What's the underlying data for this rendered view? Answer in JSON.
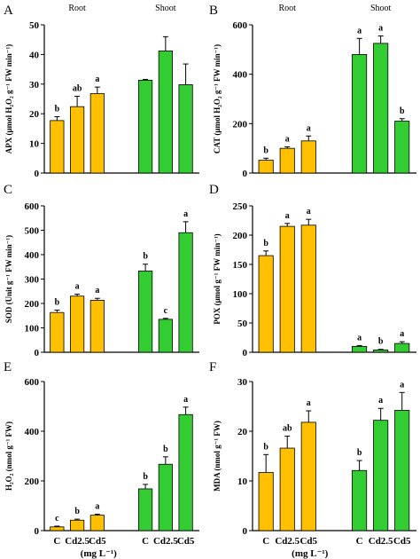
{
  "figure": {
    "colors": {
      "root": "#FFC000",
      "shoot": "#33CC33",
      "axis": "#000000"
    },
    "x_unit": "(mg L⁻¹)"
  },
  "chart_data": [
    {
      "panel": "A",
      "type": "bar",
      "ylabel": "APX (μmol H₂O₂ g⁻¹ FW min⁻¹)",
      "ylim": [
        0,
        50
      ],
      "yticks": [
        0,
        10,
        20,
        30,
        40,
        50
      ],
      "group_labels": [
        "Root",
        "Shoot"
      ],
      "categories": [
        "C",
        "Cd2.5",
        "Cd5"
      ],
      "series": [
        {
          "name": "Root",
          "values": [
            17.7,
            22.4,
            26.8
          ],
          "errors": [
            1.3,
            3.5,
            2.2
          ],
          "letters": [
            "b",
            "ab",
            "a"
          ]
        },
        {
          "name": "Shoot",
          "values": [
            31.3,
            41.2,
            29.8
          ],
          "errors": [
            0.3,
            4.8,
            7.0
          ],
          "letters": [
            "",
            "",
            ""
          ]
        }
      ]
    },
    {
      "panel": "B",
      "type": "bar",
      "ylabel": "CAT (μmol H₂O₂ g⁻¹ FW min⁻¹)",
      "ylim": [
        0,
        600
      ],
      "yticks": [
        0,
        200,
        400,
        600
      ],
      "group_labels": [
        "Root",
        "Shoot"
      ],
      "categories": [
        "C",
        "Cd2.5",
        "Cd5"
      ],
      "series": [
        {
          "name": "Root",
          "values": [
            52,
            100,
            130
          ],
          "errors": [
            8,
            6,
            20
          ],
          "letters": [
            "b",
            "a",
            "a"
          ]
        },
        {
          "name": "Shoot",
          "values": [
            480,
            525,
            210
          ],
          "errors": [
            65,
            30,
            10
          ],
          "letters": [
            "a",
            "a",
            "b"
          ]
        }
      ]
    },
    {
      "panel": "C",
      "type": "bar",
      "ylabel": "SOD (Unit g⁻¹ FW min⁻¹)",
      "ylim": [
        0,
        600
      ],
      "yticks": [
        0,
        100,
        200,
        300,
        400,
        500,
        600
      ],
      "group_labels": [],
      "categories": [
        "C",
        "Cd2.5",
        "Cd5"
      ],
      "series": [
        {
          "name": "Root",
          "values": [
            163,
            230,
            213
          ],
          "errors": [
            10,
            8,
            8
          ],
          "letters": [
            "b",
            "a",
            "a"
          ]
        },
        {
          "name": "Shoot",
          "values": [
            333,
            135,
            490
          ],
          "errors": [
            28,
            4,
            45
          ],
          "letters": [
            "b",
            "c",
            "a"
          ]
        }
      ]
    },
    {
      "panel": "D",
      "type": "bar",
      "ylabel": "POX (μmol g⁻¹ FW min⁻¹)",
      "ylim": [
        0,
        250
      ],
      "yticks": [
        0,
        50,
        100,
        150,
        200,
        250
      ],
      "group_labels": [],
      "categories": [
        "C",
        "Cd2.5",
        "Cd5"
      ],
      "series": [
        {
          "name": "Root",
          "values": [
            165,
            215,
            217
          ],
          "errors": [
            8,
            5,
            10
          ],
          "letters": [
            "b",
            "a",
            "a"
          ]
        },
        {
          "name": "Shoot",
          "values": [
            10,
            4,
            15
          ],
          "errors": [
            1.5,
            1,
            3
          ],
          "letters": [
            "a",
            "b",
            "a"
          ]
        }
      ]
    },
    {
      "panel": "E",
      "type": "bar",
      "ylabel": "H₂O₂ (nmol g⁻¹ FW)",
      "ylim": [
        0,
        600
      ],
      "yticks": [
        0,
        200,
        400,
        600
      ],
      "group_labels": [],
      "categories": [
        "C",
        "Cd2.5",
        "Cd5"
      ],
      "series": [
        {
          "name": "Root",
          "values": [
            15,
            42,
            62
          ],
          "errors": [
            3,
            4,
            4
          ],
          "letters": [
            "c",
            "b",
            "a"
          ]
        },
        {
          "name": "Shoot",
          "values": [
            168,
            267,
            467
          ],
          "errors": [
            18,
            30,
            30
          ],
          "letters": [
            "b",
            "b",
            "a"
          ]
        }
      ]
    },
    {
      "panel": "F",
      "type": "bar",
      "ylabel": "MDA (nmol g⁻¹ FW)",
      "ylim": [
        0,
        30
      ],
      "yticks": [
        0,
        10,
        20,
        30
      ],
      "group_labels": [],
      "categories": [
        "C",
        "Cd2.5",
        "Cd5"
      ],
      "series": [
        {
          "name": "Root",
          "values": [
            11.7,
            16.6,
            21.8
          ],
          "errors": [
            3.6,
            2.4,
            2.3
          ],
          "letters": [
            "b",
            "ab",
            "a"
          ]
        },
        {
          "name": "Shoot",
          "values": [
            12.1,
            22.2,
            24.2
          ],
          "errors": [
            2.0,
            2.4,
            3.6
          ],
          "letters": [
            "b",
            "a",
            "a"
          ]
        }
      ]
    }
  ]
}
